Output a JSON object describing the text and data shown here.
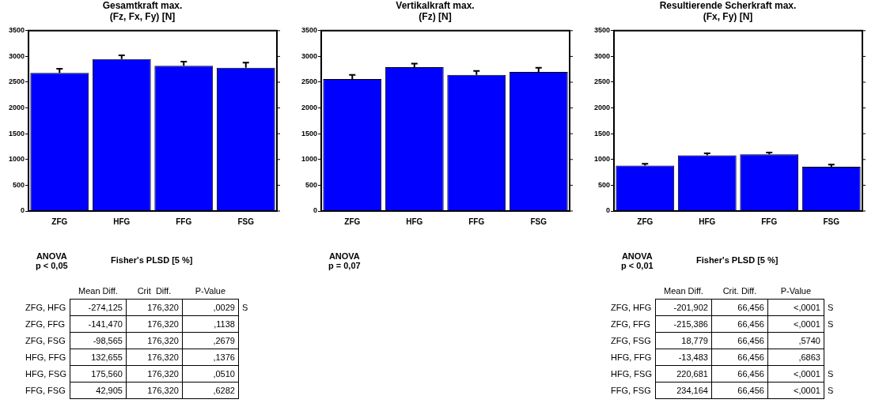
{
  "chart_data": [
    {
      "type": "bar",
      "title": "Gesamtkraft max.\n(Fz, Fx, Fy) [N]",
      "categories": [
        "ZFG",
        "HFG",
        "FFG",
        "FSG"
      ],
      "values": [
        2680,
        2950,
        2820,
        2780
      ],
      "errors": [
        80,
        70,
        80,
        100
      ],
      "color": "#0000ff",
      "ylim": [
        0,
        3500
      ],
      "yticks": [
        0,
        500,
        1000,
        1500,
        2000,
        2500,
        3000,
        3500
      ],
      "grid": false,
      "legend": false,
      "annotations": [
        "ANOVA\np < 0,05",
        "Fisher's PLSD [5 %]",
        "Mean Diff.",
        "Crit  Diff.",
        "P-Value",
        "ZFG, HFG",
        "-274,125",
        "176,320",
        ",0029",
        "S",
        "ZFG, FFG",
        "-141,470",
        "176,320",
        ",1138",
        null,
        "ZFG, FSG",
        "-98,565",
        "176,320",
        ",2679",
        null,
        "HFG, FFG",
        "132,655",
        "176,320",
        ",1376",
        null,
        "HFG, FSG",
        "175,560",
        "176,320",
        ",0510",
        null,
        "FFG, FSG",
        "42,905",
        "176,320",
        ",6282",
        null
      ]
    },
    {
      "type": "bar",
      "title": "Vertikalkraft max.\n(Fz) [N]",
      "categories": [
        "ZFG",
        "HFG",
        "FFG",
        "FSG"
      ],
      "values": [
        2560,
        2790,
        2640,
        2700
      ],
      "errors": [
        80,
        70,
        80,
        80
      ],
      "color": "#0000ff",
      "ylim": [
        0,
        3500
      ],
      "yticks": [
        0,
        500,
        1000,
        1500,
        2000,
        2500,
        3000,
        3500
      ],
      "grid": false,
      "legend": false,
      "annotations": [
        "ANOVA\np = 0,07"
      ]
    },
    {
      "type": "bar",
      "title": "Resultierende Scherkraft max.\n(Fx, Fy) [N]",
      "categories": [
        "ZFG",
        "HFG",
        "FFG",
        "FSG"
      ],
      "values": [
        880,
        1080,
        1100,
        860
      ],
      "errors": [
        35,
        40,
        35,
        40
      ],
      "color": "#0000ff",
      "ylim": [
        0,
        3500
      ],
      "yticks": [
        0,
        500,
        1000,
        1500,
        2000,
        2500,
        3000,
        3500
      ],
      "grid": false,
      "legend": false,
      "annotations": [
        "ANOVA\np < 0,01",
        "Fisher's PLSD [5 %]",
        "Mean Diff.",
        "Crit. Diff.",
        "P-Value",
        "ZFG, HFG",
        "-201,902",
        "66,456",
        "<,0001",
        "S",
        "ZFG, FFG",
        "-215,386",
        "66,456",
        "<,0001",
        "S",
        "ZFG, FSG",
        "18,779",
        "66,456",
        ",5740",
        null,
        "HFG, FFG",
        "-13,483",
        "66,456",
        ",6863",
        null,
        "HFG, FSG",
        "220,681",
        "66,456",
        "<,0001",
        "S",
        "FFG, FSG",
        "234,164",
        "66,456",
        "<,0001",
        "S"
      ]
    }
  ]
}
